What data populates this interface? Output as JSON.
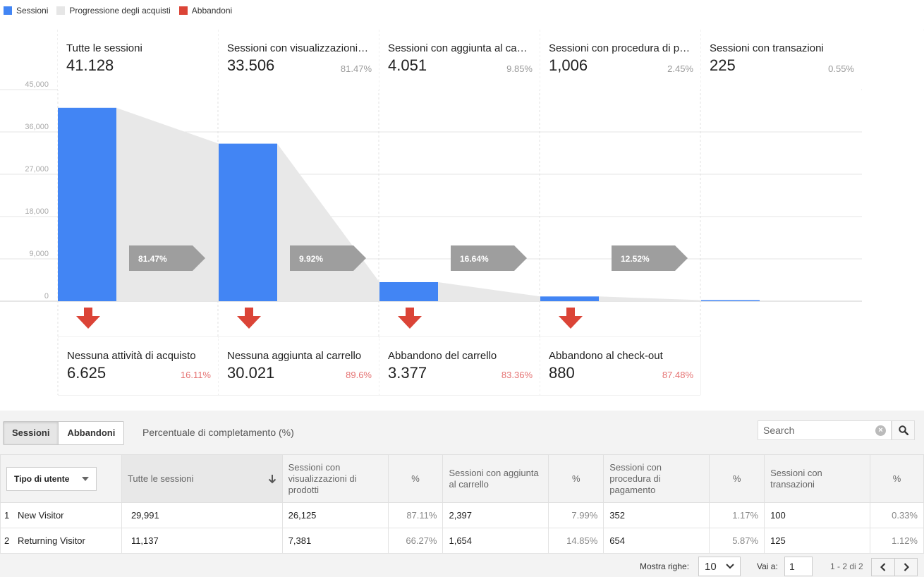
{
  "legend": [
    {
      "label": "Sessioni",
      "color": "#4285f4"
    },
    {
      "label": "Progressione degli acquisti",
      "color": "#e6e6e6"
    },
    {
      "label": "Abbandoni",
      "color": "#db4437"
    }
  ],
  "chart_data": {
    "type": "bar",
    "categories": [
      "Tutte le sessioni",
      "Sessioni con visualizzazioni di prodotti",
      "Sessioni con aggiunta al carrello",
      "Sessioni con procedura di pagamento",
      "Sessioni con transazioni"
    ],
    "series": [
      {
        "name": "Sessioni",
        "values": [
          41128,
          33506,
          4051,
          1006,
          225
        ]
      }
    ],
    "ylim": [
      0,
      45000
    ],
    "yticks": [
      "45,000",
      "36,000",
      "27,000",
      "18,000",
      "9,000",
      "0"
    ],
    "ytick_values": [
      45000,
      36000,
      27000,
      18000,
      9000,
      0
    ],
    "progression_rates": [
      "81.47%",
      "9.92%",
      "16.64%",
      "12.52%"
    ],
    "grid": true
  },
  "steps": [
    {
      "label": "Tutte le sessioni",
      "display_label": "Tutte le sessioni",
      "value": "41.128",
      "pct": ""
    },
    {
      "label": "Sessioni con visualizzazioni di prodotti",
      "display_label": "Sessioni con visualizzazioni…",
      "value": "33.506",
      "pct": "81.47%"
    },
    {
      "label": "Sessioni con aggiunta al carrello",
      "display_label": "Sessioni con aggiunta al ca…",
      "value": "4.051",
      "pct": "9.85%"
    },
    {
      "label": "Sessioni con procedura di pagamento",
      "display_label": "Sessioni con procedura di p…",
      "value": "1,006",
      "pct": "2.45%"
    },
    {
      "label": "Sessioni con transazioni",
      "display_label": "Sessioni con transazioni",
      "value": "225",
      "pct": "0.55%"
    }
  ],
  "abandonments": [
    {
      "label": "Nessuna attività di acquisto",
      "value": "6.625",
      "pct": "16.11%"
    },
    {
      "label": "Nessuna aggiunta al carrello",
      "value": "30.021",
      "pct": "89.6%"
    },
    {
      "label": "Abbandono del carrello",
      "value": "3.377",
      "pct": "83.36%"
    },
    {
      "label": "Abbandono al check-out",
      "value": "880",
      "pct": "87.48%"
    }
  ],
  "controls": {
    "tabs": [
      "Sessioni",
      "Abbandoni"
    ],
    "pct_link": "Percentuale di completamento (%)",
    "search_placeholder": "Search"
  },
  "table": {
    "dimension": "Tipo di utente",
    "headers": [
      "Tutte le sessioni",
      "Sessioni con visualizzazioni di prodotti",
      "%",
      "Sessioni con aggiunta al carrello",
      "%",
      "Sessioni con procedura di pagamento",
      "%",
      "Sessioni con transazioni",
      "%"
    ],
    "rows": [
      {
        "index": "1",
        "name": "New Visitor",
        "cells": [
          "29,991",
          "26,125",
          "87.11%",
          "2,397",
          "7.99%",
          "352",
          "1.17%",
          "100",
          "0.33%"
        ]
      },
      {
        "index": "2",
        "name": "Returning Visitor",
        "cells": [
          "11,137",
          "7,381",
          "66.27%",
          "1,654",
          "14.85%",
          "654",
          "5.87%",
          "125",
          "1.12%"
        ]
      }
    ]
  },
  "footer": {
    "rows_label": "Mostra righe:",
    "rows_value": "10",
    "goto_label": "Vai a:",
    "goto_value": "1",
    "page_info": "1 - 2 di 2"
  }
}
